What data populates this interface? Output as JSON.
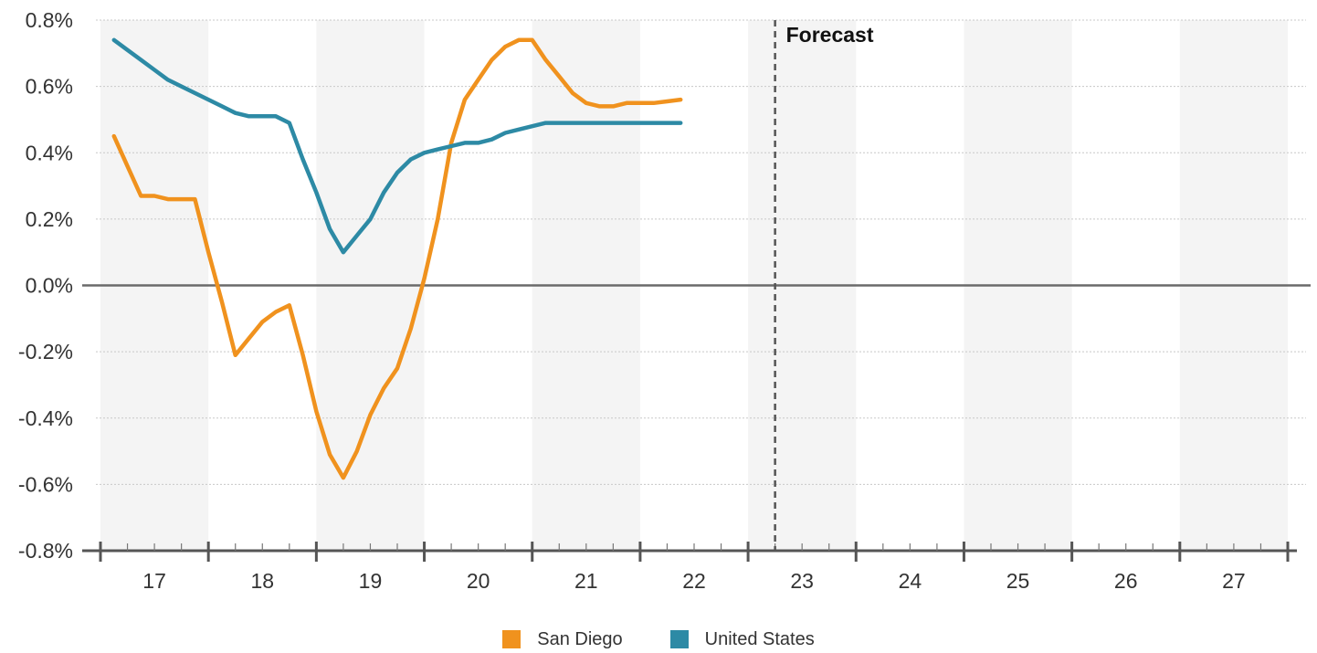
{
  "chart_data": {
    "type": "line",
    "x_ticks": [
      "17",
      "18",
      "19",
      "20",
      "21",
      "22",
      "23",
      "24",
      "25",
      "26",
      "27"
    ],
    "y_ticks": [
      "0.8%",
      "0.6%",
      "0.4%",
      "0.2%",
      "0.0%",
      "-0.2%",
      "-0.4%",
      "-0.6%",
      "-0.8%"
    ],
    "ylim": [
      -0.8,
      0.8
    ],
    "xlim": [
      16.5,
      27.5
    ],
    "forecast_label": "Forecast",
    "forecast_x": 22.75,
    "grid": true,
    "legend_position": "bottom-center",
    "series": [
      {
        "name": "San Diego",
        "color": "#F0921E",
        "points": [
          [
            16.625,
            0.45
          ],
          [
            16.75,
            0.36
          ],
          [
            16.875,
            0.27
          ],
          [
            17.0,
            0.27
          ],
          [
            17.125,
            0.26
          ],
          [
            17.25,
            0.26
          ],
          [
            17.375,
            0.26
          ],
          [
            17.5,
            0.1
          ],
          [
            17.625,
            -0.05
          ],
          [
            17.75,
            -0.21
          ],
          [
            17.875,
            -0.16
          ],
          [
            18.0,
            -0.11
          ],
          [
            18.125,
            -0.08
          ],
          [
            18.25,
            -0.06
          ],
          [
            18.375,
            -0.21
          ],
          [
            18.5,
            -0.38
          ],
          [
            18.625,
            -0.51
          ],
          [
            18.75,
            -0.58
          ],
          [
            18.875,
            -0.5
          ],
          [
            19.0,
            -0.39
          ],
          [
            19.125,
            -0.31
          ],
          [
            19.25,
            -0.25
          ],
          [
            19.375,
            -0.13
          ],
          [
            19.5,
            0.02
          ],
          [
            19.625,
            0.2
          ],
          [
            19.75,
            0.43
          ],
          [
            19.875,
            0.56
          ],
          [
            20.0,
            0.62
          ],
          [
            20.125,
            0.68
          ],
          [
            20.25,
            0.72
          ],
          [
            20.375,
            0.74
          ],
          [
            20.5,
            0.74
          ],
          [
            20.625,
            0.68
          ],
          [
            20.75,
            0.63
          ],
          [
            20.875,
            0.58
          ],
          [
            21.0,
            0.55
          ],
          [
            21.125,
            0.54
          ],
          [
            21.25,
            0.54
          ],
          [
            21.375,
            0.55
          ],
          [
            21.5,
            0.55
          ],
          [
            21.625,
            0.55
          ],
          [
            21.75,
            0.555
          ],
          [
            21.875,
            0.56
          ]
        ]
      },
      {
        "name": "United States",
        "color": "#2D8AA5",
        "points": [
          [
            16.625,
            0.74
          ],
          [
            16.75,
            0.71
          ],
          [
            16.875,
            0.68
          ],
          [
            17.0,
            0.65
          ],
          [
            17.125,
            0.62
          ],
          [
            17.25,
            0.6
          ],
          [
            17.375,
            0.58
          ],
          [
            17.5,
            0.56
          ],
          [
            17.625,
            0.54
          ],
          [
            17.75,
            0.52
          ],
          [
            17.875,
            0.51
          ],
          [
            18.0,
            0.51
          ],
          [
            18.125,
            0.51
          ],
          [
            18.25,
            0.49
          ],
          [
            18.375,
            0.38
          ],
          [
            18.5,
            0.28
          ],
          [
            18.625,
            0.17
          ],
          [
            18.75,
            0.1
          ],
          [
            18.875,
            0.15
          ],
          [
            19.0,
            0.2
          ],
          [
            19.125,
            0.28
          ],
          [
            19.25,
            0.34
          ],
          [
            19.375,
            0.38
          ],
          [
            19.5,
            0.4
          ],
          [
            19.625,
            0.41
          ],
          [
            19.75,
            0.42
          ],
          [
            19.875,
            0.43
          ],
          [
            20.0,
            0.43
          ],
          [
            20.125,
            0.44
          ],
          [
            20.25,
            0.46
          ],
          [
            20.375,
            0.47
          ],
          [
            20.5,
            0.48
          ],
          [
            20.625,
            0.49
          ],
          [
            20.75,
            0.49
          ],
          [
            20.875,
            0.49
          ],
          [
            21.0,
            0.49
          ],
          [
            21.125,
            0.49
          ],
          [
            21.25,
            0.49
          ],
          [
            21.375,
            0.49
          ],
          [
            21.5,
            0.49
          ],
          [
            21.625,
            0.49
          ],
          [
            21.75,
            0.49
          ],
          [
            21.875,
            0.49
          ]
        ]
      }
    ]
  },
  "legend": {
    "items": [
      {
        "label": "San Diego",
        "color": "#F0921E"
      },
      {
        "label": "United States",
        "color": "#2D8AA5"
      }
    ]
  }
}
